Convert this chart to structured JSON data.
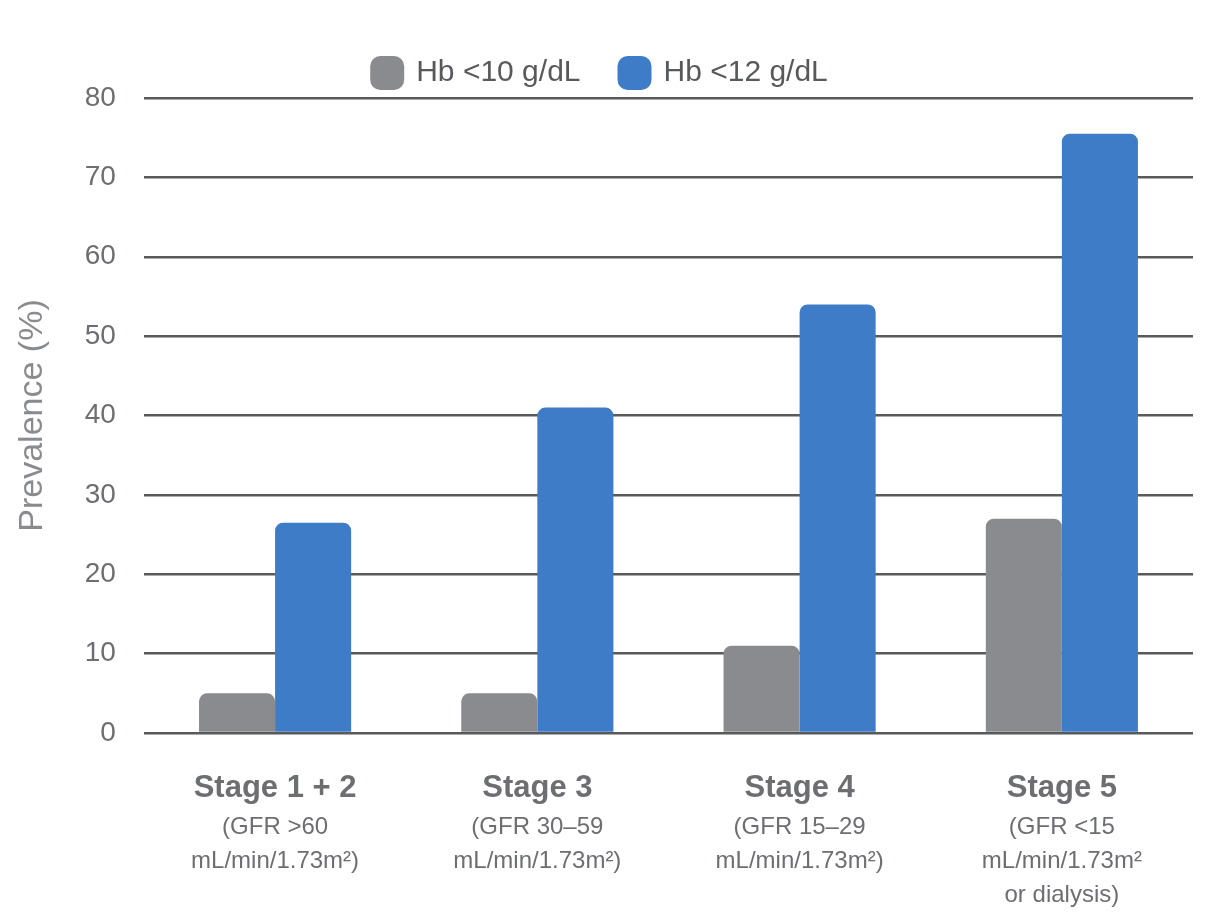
{
  "chart_data": {
    "type": "bar",
    "ylabel": "Prevalence (%)",
    "categories": [
      "Stage 1 + 2\n(GFR >60\nmL/min/1.73m²)",
      "Stage 3\n(GFR 30–59\nmL/min/1.73m²)",
      "Stage 4\n(GFR 15–29\nmL/min/1.73m²)",
      "Stage 5\n(GFR <15\nmL/min/1.73m²\nor dialysis)"
    ],
    "series": [
      {
        "name": "Hb <10 g/dL",
        "color": "#8a8b8e",
        "values": [
          5,
          5,
          11,
          27
        ]
      },
      {
        "name": "Hb <12 g/dL",
        "color": "#3f7cc8",
        "values": [
          26.5,
          41,
          54,
          75.5
        ]
      }
    ],
    "ylim": [
      0,
      80
    ],
    "yticks": [
      0,
      10,
      20,
      30,
      40,
      50,
      60,
      70,
      80
    ],
    "grid": "y",
    "legend": "top"
  }
}
